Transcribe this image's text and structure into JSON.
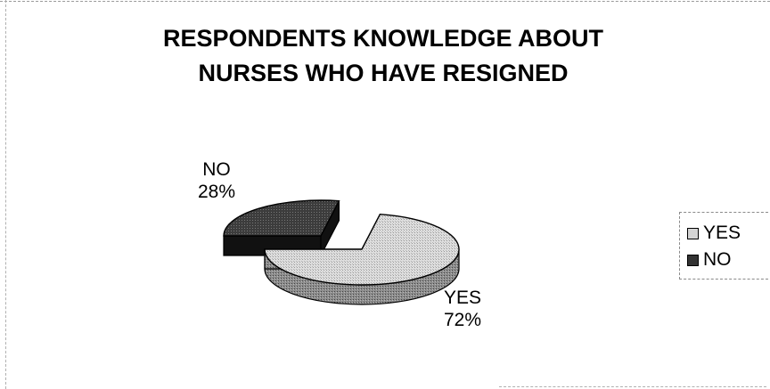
{
  "chart_data": {
    "type": "pie",
    "title": "RESPONDENTS KNOWLEDGE ABOUT NURSES WHO HAVE RESIGNED",
    "title_lines": [
      "RESPONDENTS KNOWLEDGE ABOUT",
      "NURSES WHO HAVE RESIGNED"
    ],
    "categories": [
      "YES",
      "NO"
    ],
    "values": [
      72,
      28
    ],
    "value_labels": [
      "72%",
      "28%"
    ],
    "colors": {
      "YES": "#d4d4d4",
      "NO": "#333333"
    },
    "legend_placement": "right",
    "style": "3d-exploded"
  }
}
